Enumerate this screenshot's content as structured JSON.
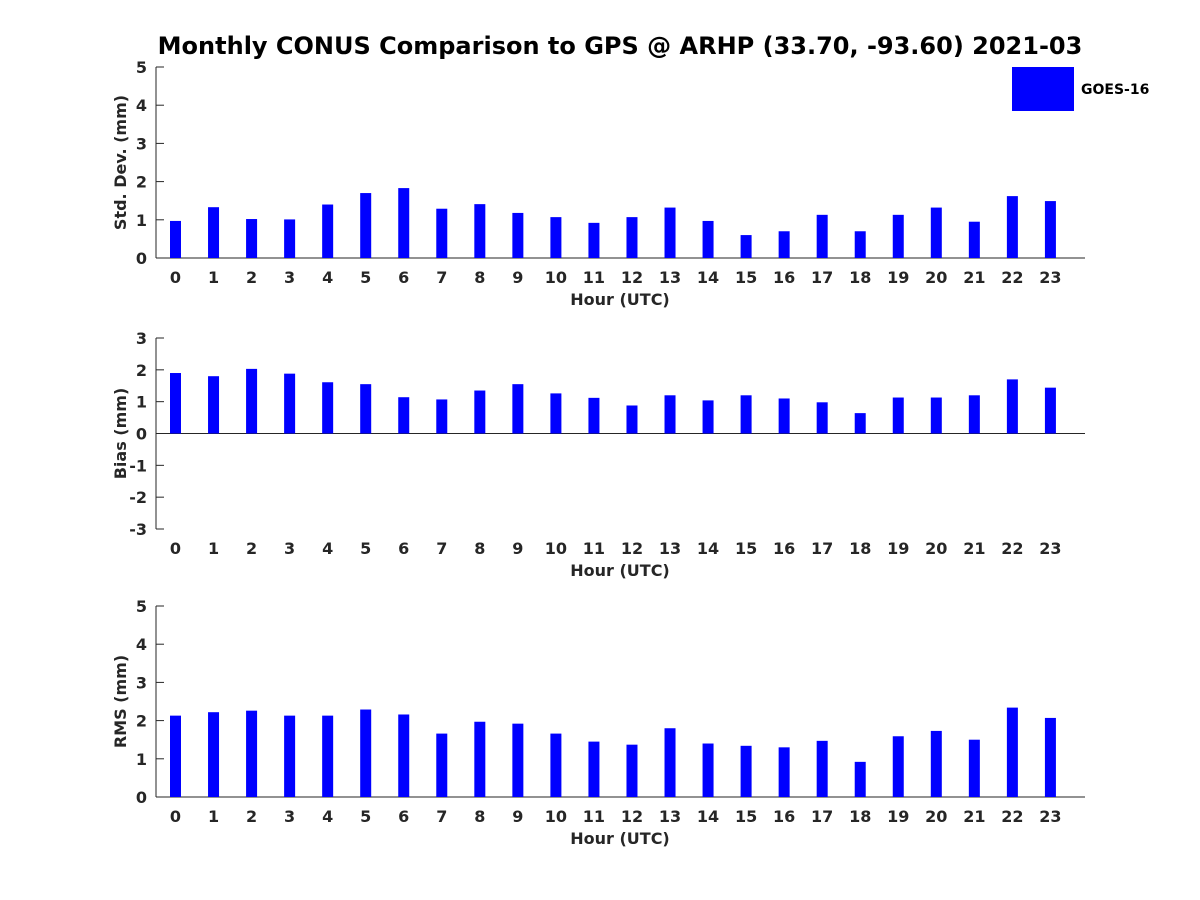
{
  "chart_title": "Monthly CONUS Comparison to GPS @ ARHP (33.70, -93.60) 2021-03",
  "legend": {
    "label": "GOES-16",
    "color": "#0000ff"
  },
  "chart_data": [
    {
      "type": "bar",
      "title": "",
      "xlabel": "Hour (UTC)",
      "ylabel": "Std. Dev. (mm)",
      "categories": [
        "0",
        "1",
        "2",
        "3",
        "4",
        "5",
        "6",
        "7",
        "8",
        "9",
        "10",
        "11",
        "12",
        "13",
        "14",
        "15",
        "16",
        "17",
        "18",
        "19",
        "20",
        "21",
        "22",
        "23"
      ],
      "series": [
        {
          "name": "GOES-16",
          "color": "#0000ff",
          "values": [
            0.97,
            1.33,
            1.02,
            1.01,
            1.4,
            1.7,
            1.83,
            1.29,
            1.41,
            1.18,
            1.07,
            0.92,
            1.07,
            1.32,
            0.97,
            0.6,
            0.7,
            1.13,
            0.7,
            1.13,
            1.32,
            0.95,
            1.62,
            1.49
          ]
        }
      ],
      "ylim": [
        0,
        5
      ],
      "yticks": [
        0,
        1,
        2,
        3,
        4,
        5
      ],
      "grid": false,
      "legend_position": "top-right"
    },
    {
      "type": "bar",
      "title": "",
      "xlabel": "Hour (UTC)",
      "ylabel": "Bias (mm)",
      "categories": [
        "0",
        "1",
        "2",
        "3",
        "4",
        "5",
        "6",
        "7",
        "8",
        "9",
        "10",
        "11",
        "12",
        "13",
        "14",
        "15",
        "16",
        "17",
        "18",
        "19",
        "20",
        "21",
        "22",
        "23"
      ],
      "series": [
        {
          "name": "GOES-16",
          "color": "#0000ff",
          "values": [
            1.9,
            1.8,
            2.03,
            1.88,
            1.61,
            1.55,
            1.14,
            1.07,
            1.35,
            1.55,
            1.26,
            1.12,
            0.88,
            1.2,
            1.04,
            1.2,
            1.1,
            0.98,
            0.64,
            1.13,
            1.13,
            1.2,
            1.7,
            1.44
          ]
        }
      ],
      "ylim": [
        -3,
        3
      ],
      "yticks": [
        -3,
        -2,
        -1,
        0,
        1,
        2,
        3
      ],
      "grid": false
    },
    {
      "type": "bar",
      "title": "",
      "xlabel": "Hour (UTC)",
      "ylabel": "RMS (mm)",
      "categories": [
        "0",
        "1",
        "2",
        "3",
        "4",
        "5",
        "6",
        "7",
        "8",
        "9",
        "10",
        "11",
        "12",
        "13",
        "14",
        "15",
        "16",
        "17",
        "18",
        "19",
        "20",
        "21",
        "22",
        "23"
      ],
      "series": [
        {
          "name": "GOES-16",
          "color": "#0000ff",
          "values": [
            2.13,
            2.22,
            2.26,
            2.13,
            2.13,
            2.29,
            2.16,
            1.66,
            1.97,
            1.92,
            1.66,
            1.45,
            1.37,
            1.8,
            1.4,
            1.34,
            1.3,
            1.47,
            0.92,
            1.59,
            1.73,
            1.5,
            2.34,
            2.07
          ]
        }
      ],
      "ylim": [
        0,
        5
      ],
      "yticks": [
        0,
        1,
        2,
        3,
        4,
        5
      ],
      "grid": false
    }
  ]
}
